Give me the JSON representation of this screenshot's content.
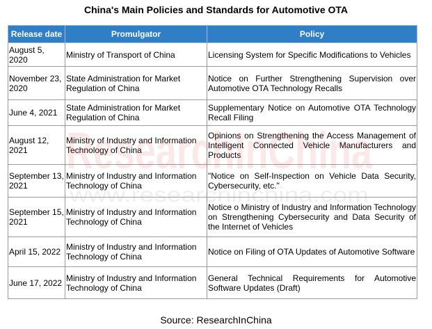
{
  "title": "China's Main Policies and Standards for Automotive OTA",
  "table": {
    "headers": [
      "Release date",
      "Promulgator",
      "Policy"
    ],
    "rows": [
      {
        "date": "August 5, 2020",
        "promulgator": "Ministry of Transport of China",
        "policy": "Licensing System for Specific Modifications to Vehicles"
      },
      {
        "date": "November 23, 2020",
        "promulgator": "State Administration for Market Regulation of China",
        "policy": "Notice on Further Strengthening Supervision over Automotive OTA Technology Recalls"
      },
      {
        "date": "June 4, 2021",
        "promulgator": "State Administration for Market Regulation of China",
        "policy": "Supplementary Notice on Automotive OTA Technology Recall Filing"
      },
      {
        "date": "August 12, 2021",
        "promulgator": "Ministry of Industry and Information Technology of China",
        "policy": "Opinions on Strengthening the Access Management of Intelligent Connected Vehicle Manufacturers and Products"
      },
      {
        "date": "September 13, 2021",
        "promulgator": "Ministry of Industry and Information Technology of China",
        "policy": "\"Notice on Self-Inspection on Vehicle Data Security, Cybersecurity, etc.\""
      },
      {
        "date": "September 15, 2021",
        "promulgator": "Ministry of Industry and Information Technology of China",
        "policy": "Notice o Ministry of Industry and Information Technology on Strengthening Cybersecurity and Data Security of the Internet of Vehicles"
      },
      {
        "date": "April 15, 2022",
        "promulgator": "Ministry of Industry and Information Technology of China",
        "policy": "Notice on Filing of OTA Updates of Automotive Software"
      },
      {
        "date": "June 17, 2022",
        "promulgator": "Ministry of Industry and Information Technology of China",
        "policy": "General Technical Requirements for Automotive Software Updates (Draft)"
      }
    ]
  },
  "watermark": {
    "brand": "ResearchInChina",
    "url": "www.researchinchina.com"
  },
  "source": "Source: ResearchInChina",
  "colors": {
    "header_bg": "#2e7fc8",
    "header_text": "#ffffff",
    "border": "#9a9a9a",
    "watermark": "#e8c8c8"
  }
}
